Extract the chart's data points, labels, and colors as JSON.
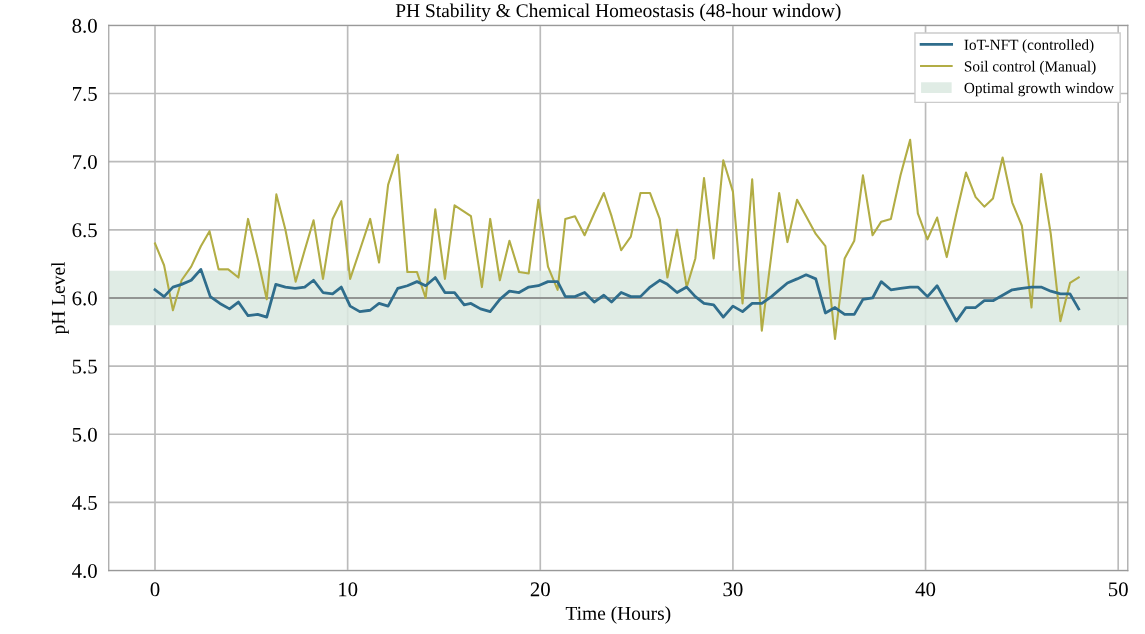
{
  "chart_data": {
    "type": "line",
    "title": "PH Stability & Chemical Homeostasis (48-hour window)",
    "xlabel": "Time (Hours)",
    "ylabel": "pH Level",
    "xlim": [
      -2.4,
      50.5
    ],
    "xticks": [
      0,
      10,
      20,
      30,
      40,
      50
    ],
    "ylim": [
      4.0,
      8.0
    ],
    "yticks": [
      {
        "value": 4.0,
        "label": "4.0"
      },
      {
        "value": 4.5,
        "label": "4.5"
      },
      {
        "value": 5.0,
        "label": "5.0"
      },
      {
        "value": 5.5,
        "label": "5.5"
      },
      {
        "value": 6.0,
        "label": "6.0"
      },
      {
        "value": 6.5,
        "label": "6.5"
      },
      {
        "value": 7.0,
        "label": "7.0"
      },
      {
        "value": 7.5,
        "label": "7.5"
      },
      {
        "value": 8.0,
        "label": "8.0"
      }
    ],
    "grid": true,
    "legend": "top right",
    "line_style": "solid",
    "marker": "none",
    "series": [
      {
        "name": "IoT-NFT (controlled)",
        "color": "#2f6d8c",
        "x": [
          0,
          0.47,
          0.93,
          1.38,
          1.88,
          2.38,
          2.87,
          3.37,
          3.87,
          4.33,
          4.83,
          5.33,
          5.8,
          6.27,
          6.77,
          7.27,
          7.77,
          8.23,
          8.72,
          9.22,
          9.67,
          10.13,
          10.63,
          11.17,
          11.63,
          12.1,
          12.6,
          13.1,
          13.6,
          14.05,
          14.55,
          15.05,
          15.55,
          16.05,
          16.4,
          16.9,
          17.4,
          17.9,
          18.4,
          18.9,
          19.4,
          19.9,
          20.4,
          20.9,
          21.3,
          21.8,
          22.3,
          22.8,
          23.3,
          23.7,
          24.2,
          24.7,
          25.2,
          25.7,
          26.2,
          26.6,
          27.1,
          27.6,
          28.05,
          28.5,
          29.0,
          29.5,
          30.0,
          30.5,
          31.0,
          31.5,
          32.0,
          32.33,
          32.83,
          33.33,
          33.8,
          34.3,
          34.8,
          35.3,
          35.8,
          36.3,
          36.75,
          37.25,
          37.7,
          38.2,
          38.7,
          39.2,
          39.6,
          40.1,
          40.6,
          41.1,
          41.6,
          42.1,
          42.6,
          43.05,
          43.5,
          44.0,
          44.5,
          45.0,
          45.5,
          46.0,
          46.5,
          47.0,
          47.5,
          47.95
        ],
        "values": [
          6.06,
          6.01,
          6.08,
          6.1,
          6.13,
          6.21,
          6.01,
          5.96,
          5.92,
          5.97,
          5.87,
          5.88,
          5.86,
          6.1,
          6.08,
          6.07,
          6.08,
          6.13,
          6.04,
          6.03,
          6.08,
          5.94,
          5.9,
          5.91,
          5.96,
          5.94,
          6.07,
          6.09,
          6.12,
          6.09,
          6.15,
          6.04,
          6.04,
          5.95,
          5.96,
          5.92,
          5.9,
          5.99,
          6.05,
          6.04,
          6.08,
          6.09,
          6.12,
          6.12,
          6.01,
          6.01,
          6.04,
          5.97,
          6.02,
          5.97,
          6.04,
          6.01,
          6.01,
          6.08,
          6.13,
          6.1,
          6.04,
          6.08,
          6.01,
          5.96,
          5.95,
          5.86,
          5.94,
          5.9,
          5.96,
          5.96,
          6.01,
          6.05,
          6.11,
          6.14,
          6.17,
          6.14,
          5.89,
          5.93,
          5.88,
          5.88,
          5.99,
          6.0,
          6.12,
          6.06,
          6.07,
          6.08,
          6.08,
          6.01,
          6.09,
          5.96,
          5.83,
          5.93,
          5.93,
          5.98,
          5.98,
          6.02,
          6.06,
          6.07,
          6.08,
          6.08,
          6.05,
          6.03,
          6.03,
          5.92
        ]
      },
      {
        "name": "Soil control (Manual)",
        "color": "#b2ad45",
        "x": [
          0,
          0.47,
          0.93,
          1.38,
          1.88,
          2.38,
          2.83,
          3.3,
          3.8,
          4.33,
          4.83,
          5.33,
          5.8,
          6.3,
          6.77,
          7.3,
          7.77,
          8.23,
          8.72,
          9.22,
          9.67,
          10.13,
          10.63,
          11.17,
          11.63,
          12.1,
          12.6,
          13.1,
          13.6,
          14.05,
          14.55,
          15.05,
          15.55,
          16.4,
          16.97,
          17.4,
          17.9,
          18.4,
          18.9,
          19.4,
          19.9,
          20.4,
          20.9,
          21.3,
          21.8,
          22.3,
          22.8,
          23.3,
          23.7,
          24.2,
          24.7,
          25.2,
          25.7,
          26.2,
          26.6,
          27.1,
          27.6,
          28.05,
          28.5,
          29.0,
          29.5,
          30.0,
          30.5,
          31.0,
          31.5,
          32.0,
          32.4,
          32.83,
          33.33,
          33.8,
          34.3,
          34.8,
          35.3,
          35.8,
          36.3,
          36.75,
          37.25,
          37.7,
          38.2,
          38.7,
          39.2,
          39.6,
          40.1,
          40.6,
          41.1,
          41.6,
          42.1,
          42.6,
          43.05,
          43.5,
          44.0,
          44.5,
          45.0,
          45.5,
          46.0,
          46.5,
          47.0,
          47.5,
          47.95
        ],
        "values": [
          6.4,
          6.24,
          5.91,
          6.13,
          6.23,
          6.38,
          6.49,
          6.21,
          6.21,
          6.15,
          6.58,
          6.29,
          5.99,
          6.76,
          6.5,
          6.12,
          6.35,
          6.57,
          6.14,
          6.58,
          6.71,
          6.14,
          6.35,
          6.58,
          6.26,
          6.83,
          7.05,
          6.19,
          6.19,
          6.0,
          6.65,
          6.14,
          6.68,
          6.6,
          6.08,
          6.58,
          6.13,
          6.42,
          6.19,
          6.18,
          6.72,
          6.23,
          6.06,
          6.58,
          6.6,
          6.46,
          6.62,
          6.77,
          6.6,
          6.35,
          6.45,
          6.77,
          6.77,
          6.58,
          6.15,
          6.5,
          6.08,
          6.29,
          6.88,
          6.29,
          7.01,
          6.78,
          5.96,
          6.87,
          5.76,
          6.32,
          6.77,
          6.41,
          6.72,
          6.6,
          6.47,
          6.38,
          5.7,
          6.29,
          6.42,
          6.9,
          6.46,
          6.56,
          6.58,
          6.9,
          7.16,
          6.62,
          6.43,
          6.59,
          6.3,
          6.62,
          6.92,
          6.74,
          6.67,
          6.73,
          7.03,
          6.7,
          6.53,
          5.93,
          6.91,
          6.47,
          5.83,
          6.11,
          6.15
        ]
      }
    ],
    "ref_lines": [
      {
        "axis": "y",
        "value": 6.0,
        "color": "#7a7a7a"
      }
    ],
    "bands": [
      {
        "axis": "y",
        "from": 5.8,
        "to": 6.2,
        "label": "Optimal growth window",
        "color": "#dbe9e1"
      }
    ]
  }
}
